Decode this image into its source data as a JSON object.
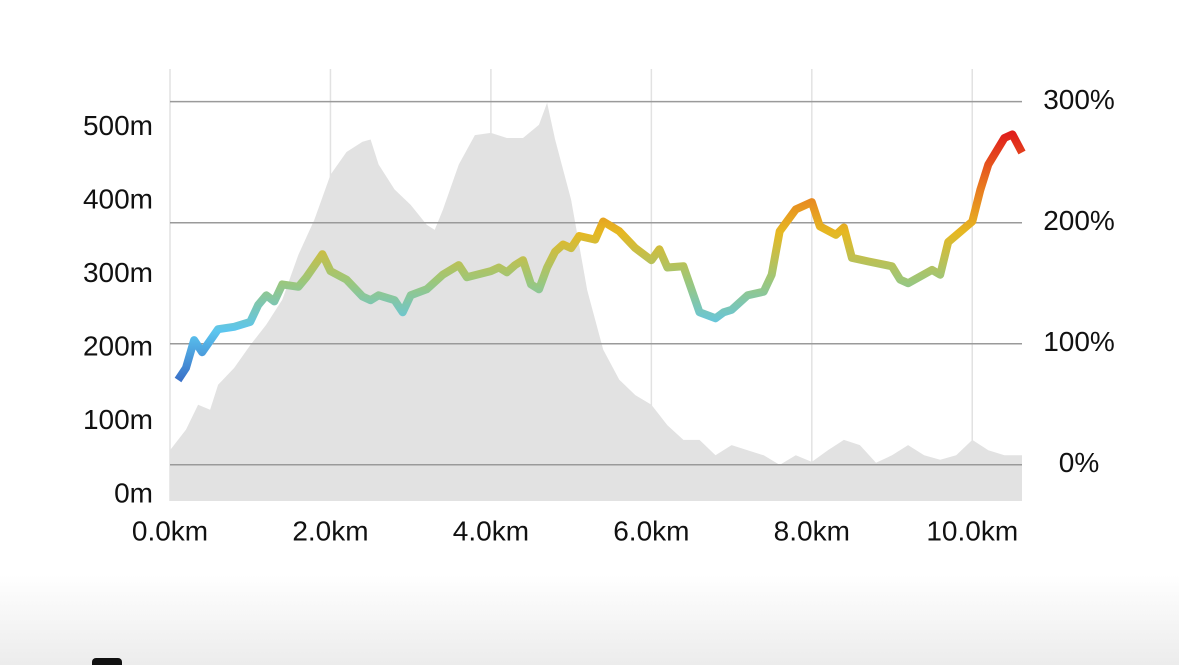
{
  "chart_data": {
    "type": "line",
    "xlim": [
      0,
      10.62
    ],
    "xticks": [
      {
        "value": 0,
        "label": "0.0km"
      },
      {
        "value": 2,
        "label": "2.0km"
      },
      {
        "value": 4,
        "label": "4.0km"
      },
      {
        "value": 6,
        "label": "6.0km"
      },
      {
        "value": 8,
        "label": "8.0km"
      },
      {
        "value": 10,
        "label": "10.0km"
      }
    ],
    "ylim": [
      0,
      580
    ],
    "yticks": [
      {
        "value": 0,
        "label": "0m"
      },
      {
        "value": 100,
        "label": "100m"
      },
      {
        "value": 200,
        "label": "200m"
      },
      {
        "value": 300,
        "label": "300m"
      },
      {
        "value": 400,
        "label": "400m"
      },
      {
        "value": 500,
        "label": "500m"
      }
    ],
    "y2lim": [
      -25,
      327
    ],
    "y2ticks": [
      {
        "value": 0,
        "label": "0%"
      },
      {
        "value": 100,
        "label": "100%"
      },
      {
        "value": 200,
        "label": "200%"
      },
      {
        "value": 300,
        "label": "300%"
      }
    ],
    "grid": true,
    "series": [
      {
        "type": "area",
        "color": "#e2e2e2",
        "x": [
          0,
          0.2,
          0.35,
          0.5,
          0.6,
          0.8,
          1.0,
          1.2,
          1.4,
          1.6,
          1.8,
          2.0,
          2.2,
          2.4,
          2.5,
          2.6,
          2.8,
          3.0,
          3.2,
          3.3,
          3.4,
          3.6,
          3.8,
          4.0,
          4.2,
          4.4,
          4.6,
          4.7,
          4.8,
          5.0,
          5.2,
          5.4,
          5.6,
          5.8,
          6.0,
          6.2,
          6.4,
          6.6,
          6.8,
          7.0,
          7.2,
          7.4,
          7.6,
          7.8,
          8.0,
          8.2,
          8.4,
          8.6,
          8.8,
          9.0,
          9.2,
          9.4,
          9.6,
          9.8,
          10.0,
          10.2,
          10.4,
          10.62
        ],
        "values": [
          61,
          89,
          123,
          116,
          150,
          173,
          204,
          232,
          266,
          327,
          375,
          436,
          467,
          481,
          484,
          450,
          416,
          395,
          368,
          361,
          388,
          450,
          490,
          493,
          486,
          486,
          504,
          534,
          484,
          402,
          279,
          198,
          157,
          136,
          123,
          95,
          75,
          75,
          54,
          68,
          61,
          54,
          41,
          54,
          45,
          61,
          75,
          68,
          44,
          54,
          68,
          54,
          48,
          54,
          75,
          61,
          54,
          54
        ]
      },
      {
        "type": "line",
        "axis": "y2",
        "colors": [
          "#3a72c9",
          "#5cc6ef",
          "#9bc77c",
          "#e6b822",
          "#e8731f",
          "#e0201c"
        ],
        "x": [
          0.1,
          0.2,
          0.3,
          0.4,
          0.6,
          0.8,
          1.0,
          1.1,
          1.2,
          1.3,
          1.4,
          1.6,
          1.7,
          1.9,
          2.0,
          2.2,
          2.4,
          2.5,
          2.6,
          2.8,
          2.9,
          3.0,
          3.2,
          3.4,
          3.6,
          3.7,
          4.0,
          4.1,
          4.2,
          4.3,
          4.4,
          4.5,
          4.6,
          4.7,
          4.8,
          4.9,
          5.0,
          5.1,
          5.3,
          5.4,
          5.6,
          5.8,
          6.0,
          6.1,
          6.2,
          6.4,
          6.6,
          6.8,
          6.9,
          7.0,
          7.2,
          7.4,
          7.5,
          7.6,
          7.8,
          8.0,
          8.1,
          8.3,
          8.4,
          8.5,
          8.7,
          9.0,
          9.1,
          9.2,
          9.5,
          9.6,
          9.7,
          10.0,
          10.1,
          10.2,
          10.4,
          10.5,
          10.62
        ],
        "values": [
          70,
          80,
          103,
          93,
          112,
          114,
          118,
          132,
          140,
          135,
          149,
          147,
          155,
          174,
          160,
          153,
          139,
          136,
          140,
          136,
          126,
          140,
          145,
          157,
          165,
          155,
          160,
          163,
          159,
          165,
          169,
          149,
          145,
          163,
          176,
          182,
          179,
          189,
          186,
          201,
          193,
          179,
          169,
          178,
          163,
          164,
          126,
          121,
          126,
          128,
          140,
          143,
          157,
          193,
          211,
          217,
          197,
          190,
          196,
          171,
          168,
          164,
          153,
          150,
          161,
          157,
          184,
          201,
          227,
          248,
          270,
          273,
          258
        ]
      }
    ]
  }
}
